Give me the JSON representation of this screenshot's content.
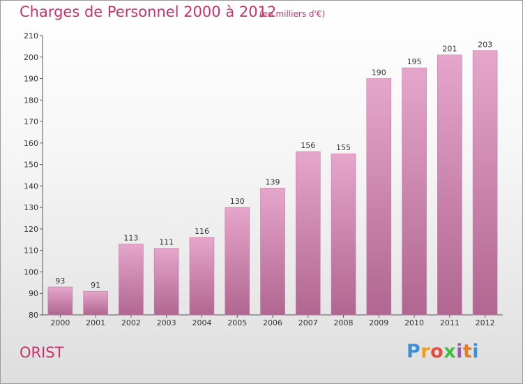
{
  "chart_data": {
    "type": "bar",
    "title": "Charges de Personnel 2000 à 2012",
    "subtitle": "(en milliers d'€)",
    "categories": [
      "2000",
      "2001",
      "2002",
      "2003",
      "2004",
      "2005",
      "2006",
      "2007",
      "2008",
      "2009",
      "2010",
      "2011",
      "2012"
    ],
    "values": [
      93,
      91,
      113,
      111,
      116,
      130,
      139,
      156,
      155,
      190,
      195,
      201,
      203
    ],
    "ylim": [
      80,
      210
    ],
    "yticks": [
      80,
      90,
      100,
      110,
      120,
      130,
      140,
      150,
      160,
      170,
      180,
      190,
      200,
      210
    ],
    "xlabel": "",
    "ylabel": "",
    "grid": false,
    "bar_color": "#c9789f"
  },
  "commune": "ORIST",
  "logo": {
    "letters": [
      "P",
      "r",
      "o",
      "x",
      "i",
      "t",
      "i"
    ],
    "colors": [
      "#3a8fd6",
      "#f39c12",
      "#e74c3c",
      "#3fbf3f",
      "#9b59b6",
      "#e67e22",
      "#3a8fd6"
    ]
  }
}
